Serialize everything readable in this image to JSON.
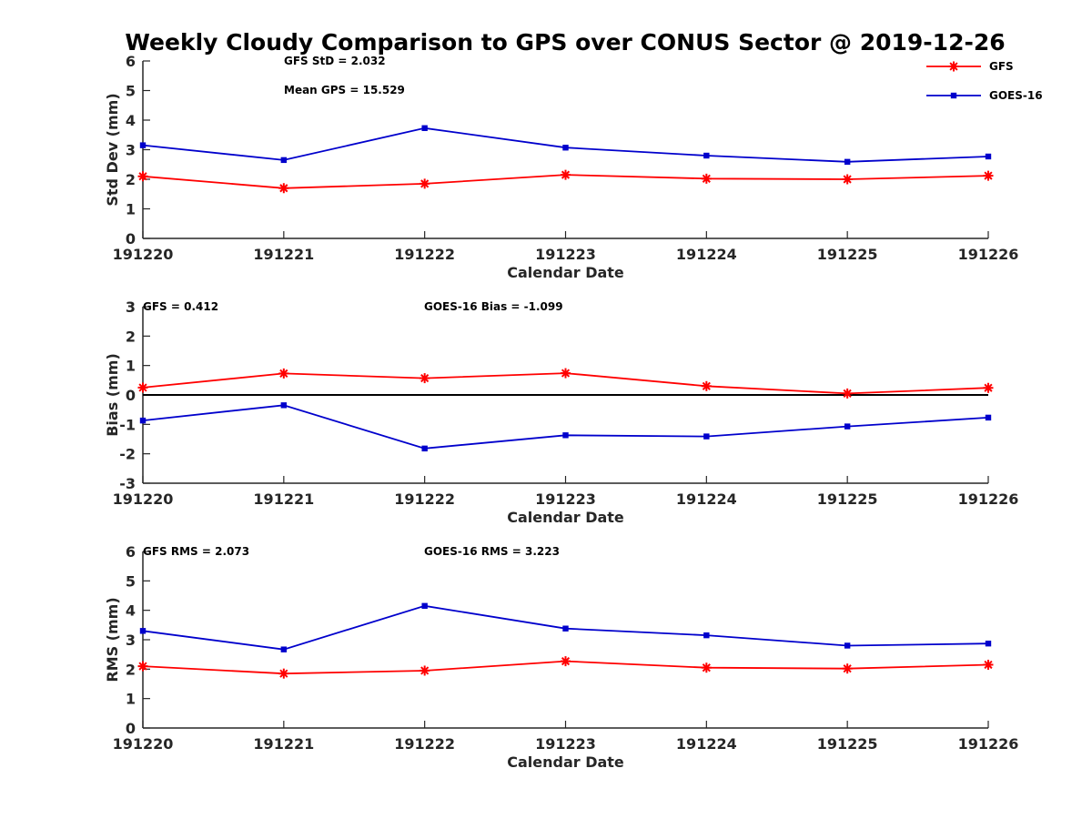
{
  "title": "Weekly Cloudy Comparison to GPS over CONUS Sector @ 2019-12-26",
  "colors": {
    "gfs": "#ff0000",
    "goes": "#0000cc",
    "axis": "#262626",
    "zero": "#000000"
  },
  "legend": [
    {
      "name": "GFS",
      "marker": "asterisk",
      "color": "#ff0000"
    },
    {
      "name": "GOES-16",
      "marker": "square",
      "color": "#0000cc"
    }
  ],
  "chart_data": [
    {
      "type": "line",
      "categories": [
        "191220",
        "191221",
        "191222",
        "191223",
        "191224",
        "191225",
        "191226"
      ],
      "xlabel": "Calendar Date",
      "ylabel": "Std Dev (mm)",
      "ylim": [
        0,
        6
      ],
      "yticks": [
        "0",
        "1",
        "2",
        "3",
        "4",
        "5",
        "6"
      ],
      "zero_line": false,
      "annotations": [
        "GFS StD = 2.032",
        "Mean GPS = 15.529"
      ],
      "series": [
        {
          "name": "GFS",
          "values": [
            2.1,
            1.7,
            1.85,
            2.15,
            2.02,
            2.0,
            2.12
          ]
        },
        {
          "name": "GOES-16",
          "values": [
            3.15,
            2.65,
            3.73,
            3.07,
            2.8,
            2.59,
            2.77
          ]
        }
      ]
    },
    {
      "type": "line",
      "categories": [
        "191220",
        "191221",
        "191222",
        "191223",
        "191224",
        "191225",
        "191226"
      ],
      "xlabel": "Calendar Date",
      "ylabel": "Bias (mm)",
      "ylim": [
        -3,
        3
      ],
      "yticks": [
        "-3",
        "-2",
        "-1",
        "0",
        "1",
        "2",
        "3"
      ],
      "zero_line": true,
      "annotations": [
        "GFS = 0.412",
        "GOES-16 Bias  = -1.099"
      ],
      "series": [
        {
          "name": "GFS",
          "values": [
            0.25,
            0.73,
            0.57,
            0.74,
            0.3,
            0.05,
            0.24
          ]
        },
        {
          "name": "GOES-16",
          "values": [
            -0.87,
            -0.35,
            -1.82,
            -1.37,
            -1.41,
            -1.07,
            -0.77
          ]
        }
      ]
    },
    {
      "type": "line",
      "categories": [
        "191220",
        "191221",
        "191222",
        "191223",
        "191224",
        "191225",
        "191226"
      ],
      "xlabel": "Calendar Date",
      "ylabel": "RMS (mm)",
      "ylim": [
        0,
        6
      ],
      "yticks": [
        "0",
        "1",
        "2",
        "3",
        "4",
        "5",
        "6"
      ],
      "zero_line": false,
      "annotations": [
        "GFS RMS = 2.073",
        "GOES-16 RMS = 3.223"
      ],
      "series": [
        {
          "name": "GFS",
          "values": [
            2.1,
            1.85,
            1.95,
            2.27,
            2.05,
            2.02,
            2.15
          ]
        },
        {
          "name": "GOES-16",
          "values": [
            3.3,
            2.67,
            4.15,
            3.38,
            3.15,
            2.8,
            2.87
          ]
        }
      ]
    }
  ]
}
